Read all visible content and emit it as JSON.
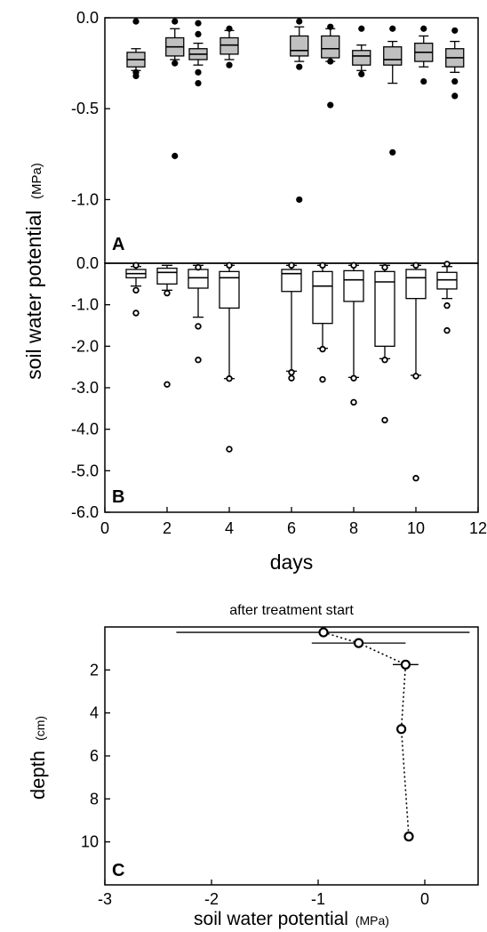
{
  "figure": {
    "ylabel_main": "soil water potential",
    "ylabel_unit": "(MPa)"
  },
  "chart_data": [
    {
      "type": "box",
      "panel": "A",
      "xlim": [
        0,
        12
      ],
      "ylim": [
        -1.35,
        0
      ],
      "ytick_labels": [
        "0.0",
        "-0.5",
        "-1.0"
      ],
      "yticks": [
        0,
        -0.5,
        -1.0
      ],
      "box_fill": "#c0c0c0",
      "boxes": [
        {
          "x": 1.0,
          "q1": -0.27,
          "median": -0.23,
          "q3": -0.19,
          "whisker_low": -0.29,
          "whisker_high": -0.17,
          "outliers": [
            -0.02,
            -0.3,
            -0.32
          ]
        },
        {
          "x": 2.25,
          "q1": -0.21,
          "median": -0.16,
          "q3": -0.11,
          "whisker_low": -0.23,
          "whisker_high": -0.06,
          "outliers": [
            -0.02,
            -0.25,
            -0.76
          ]
        },
        {
          "x": 3.0,
          "q1": -0.23,
          "median": -0.2,
          "q3": -0.17,
          "whisker_low": -0.26,
          "whisker_high": -0.14,
          "outliers": [
            -0.03,
            -0.09,
            -0.3,
            -0.36
          ]
        },
        {
          "x": 4.0,
          "q1": -0.2,
          "median": -0.15,
          "q3": -0.11,
          "whisker_low": -0.23,
          "whisker_high": -0.07,
          "outliers": [
            -0.06,
            -0.26
          ]
        },
        {
          "x": 6.25,
          "q1": -0.21,
          "median": -0.18,
          "q3": -0.1,
          "whisker_low": -0.24,
          "whisker_high": -0.05,
          "outliers": [
            -0.02,
            -0.27,
            -1.0
          ]
        },
        {
          "x": 7.25,
          "q1": -0.22,
          "median": -0.17,
          "q3": -0.1,
          "whisker_low": -0.24,
          "whisker_high": -0.06,
          "outliers": [
            -0.05,
            -0.24,
            -0.48
          ]
        },
        {
          "x": 8.25,
          "q1": -0.26,
          "median": -0.21,
          "q3": -0.18,
          "whisker_low": -0.29,
          "whisker_high": -0.15,
          "outliers": [
            -0.06,
            -0.31
          ]
        },
        {
          "x": 9.25,
          "q1": -0.26,
          "median": -0.23,
          "q3": -0.16,
          "whisker_low": -0.36,
          "whisker_high": -0.13,
          "outliers": [
            -0.06,
            -0.74
          ]
        },
        {
          "x": 10.25,
          "q1": -0.24,
          "median": -0.19,
          "q3": -0.14,
          "whisker_low": -0.27,
          "whisker_high": -0.1,
          "outliers": [
            -0.06,
            -0.35
          ]
        },
        {
          "x": 11.25,
          "q1": -0.27,
          "median": -0.22,
          "q3": -0.17,
          "whisker_low": -0.3,
          "whisker_high": -0.13,
          "outliers": [
            -0.07,
            -0.35,
            -0.43
          ]
        }
      ]
    },
    {
      "type": "box",
      "panel": "B",
      "xlim": [
        0,
        12
      ],
      "ylim": [
        -6.0,
        0
      ],
      "xlabel": "days",
      "ytick_labels": [
        "0.0",
        "-1.0",
        "-2.0",
        "-3.0",
        "-4.0",
        "-5.0",
        "-6.0"
      ],
      "yticks": [
        0,
        -1,
        -2,
        -3,
        -4,
        -5,
        -6
      ],
      "xtick_labels": [
        "0",
        "2",
        "4",
        "6",
        "8",
        "10",
        "12"
      ],
      "xticks": [
        0,
        2,
        4,
        6,
        8,
        10,
        12
      ],
      "box_fill": "#ffffff",
      "boxes": [
        {
          "x": 1.0,
          "q1": -0.35,
          "median": -0.25,
          "q3": -0.15,
          "whisker_low": -0.55,
          "whisker_high": -0.08,
          "outliers": [
            -0.05,
            -0.65,
            -1.2
          ]
        },
        {
          "x": 2.0,
          "q1": -0.5,
          "median": -0.22,
          "q3": -0.12,
          "whisker_low": -0.65,
          "whisker_high": -0.05,
          "outliers": [
            -0.72,
            -2.92
          ]
        },
        {
          "x": 3.0,
          "q1": -0.6,
          "median": -0.35,
          "q3": -0.15,
          "whisker_low": -1.3,
          "whisker_high": -0.05,
          "outliers": [
            -0.1,
            -1.52,
            -2.33
          ]
        },
        {
          "x": 4.0,
          "q1": -1.08,
          "median": -0.35,
          "q3": -0.2,
          "whisker_low": -2.78,
          "whisker_high": -0.05,
          "outliers": [
            -0.05,
            -2.78,
            -4.48
          ]
        },
        {
          "x": 6.0,
          "q1": -0.68,
          "median": -0.25,
          "q3": -0.15,
          "whisker_low": -2.6,
          "whisker_high": -0.05,
          "outliers": [
            -0.05,
            -2.63,
            -2.77
          ]
        },
        {
          "x": 7.0,
          "q1": -1.45,
          "median": -0.55,
          "q3": -0.2,
          "whisker_low": -2.05,
          "whisker_high": -0.05,
          "outliers": [
            -0.05,
            -2.07,
            -2.8
          ]
        },
        {
          "x": 8.0,
          "q1": -0.92,
          "median": -0.4,
          "q3": -0.18,
          "whisker_low": -2.75,
          "whisker_high": -0.05,
          "outliers": [
            -0.05,
            -2.77,
            -3.35
          ]
        },
        {
          "x": 9.0,
          "q1": -2.0,
          "median": -0.45,
          "q3": -0.2,
          "whisker_low": -2.3,
          "whisker_high": -0.05,
          "outliers": [
            -0.1,
            -2.33,
            -3.78
          ]
        },
        {
          "x": 10.0,
          "q1": -0.85,
          "median": -0.35,
          "q3": -0.15,
          "whisker_low": -2.7,
          "whisker_high": -0.05,
          "outliers": [
            -0.05,
            -2.72,
            -5.18
          ]
        },
        {
          "x": 11.0,
          "q1": -0.62,
          "median": -0.4,
          "q3": -0.22,
          "whisker_low": -0.85,
          "whisker_high": -0.08,
          "outliers": [
            -0.02,
            -1.02,
            -1.62
          ]
        }
      ]
    },
    {
      "type": "scatter",
      "panel": "C",
      "title": "after treatment start",
      "xlabel": "soil water potential",
      "xlabel_unit": "(MPa)",
      "ylabel": "depth",
      "ylabel_unit": "(cm)",
      "xlim": [
        -3,
        0.5
      ],
      "ylim": [
        0,
        12
      ],
      "xtick_labels": [
        "-3",
        "-2",
        "-1",
        "0"
      ],
      "xticks": [
        -3,
        -2,
        -1,
        0
      ],
      "ytick_labels": [
        "2",
        "4",
        "6",
        "8",
        "10"
      ],
      "yticks": [
        2,
        4,
        6,
        8,
        10
      ],
      "line_style": "dotted",
      "points": [
        {
          "x": -0.95,
          "y": 0.25,
          "xerr_low": -2.33,
          "xerr_high": 0.42
        },
        {
          "x": -0.62,
          "y": 0.75,
          "xerr_low": -1.06,
          "xerr_high": -0.18
        },
        {
          "x": -0.18,
          "y": 1.75,
          "xerr_low": -0.3,
          "xerr_high": -0.06
        },
        {
          "x": -0.22,
          "y": 4.75,
          "xerr_low": -0.25,
          "xerr_high": -0.19
        },
        {
          "x": -0.15,
          "y": 9.75,
          "xerr_low": -0.19,
          "xerr_high": -0.11
        }
      ]
    }
  ]
}
